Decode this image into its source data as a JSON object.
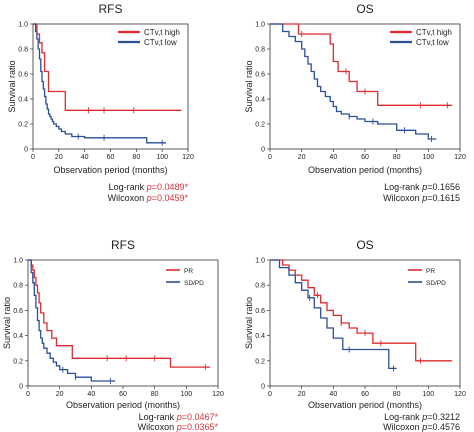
{
  "chart_data": [
    {
      "type": "line",
      "title": "RFS",
      "xlabel": "Observation period (months)",
      "ylabel": "Survival ratio",
      "xlim": [
        0,
        120
      ],
      "ylim": [
        0,
        1.0
      ],
      "xticks": [
        "0",
        "20",
        "40",
        "60",
        "80",
        "100",
        "120"
      ],
      "yticks": [
        "0",
        "0.2",
        "0.4",
        "0.6",
        "0.8",
        "1.0"
      ],
      "legend_style": "large",
      "legend_position": "top-right",
      "series": [
        {
          "name": "CTv,t high",
          "color": "#e02a2f",
          "x": [
            0,
            3,
            5,
            7,
            9,
            12,
            25,
            115
          ],
          "y": [
            1.0,
            0.92,
            0.85,
            0.77,
            0.62,
            0.46,
            0.31,
            0.31
          ],
          "censor_x": [
            43,
            55,
            78
          ]
        },
        {
          "name": "CTv,t low",
          "color": "#2a4f9a",
          "x": [
            0,
            2,
            3,
            4,
            5,
            6,
            7,
            8,
            9,
            10,
            11,
            12,
            13,
            14,
            15,
            16,
            18,
            20,
            22,
            25,
            30,
            40,
            88,
            103
          ],
          "y": [
            1.0,
            0.94,
            0.88,
            0.8,
            0.72,
            0.62,
            0.54,
            0.48,
            0.42,
            0.36,
            0.32,
            0.28,
            0.26,
            0.24,
            0.22,
            0.2,
            0.18,
            0.16,
            0.14,
            0.12,
            0.1,
            0.09,
            0.05,
            0.05
          ],
          "censor_x": [
            35,
            55,
            100
          ]
        }
      ],
      "stats": [
        {
          "label": "Log-rank",
          "p_label": "p",
          "value": "=0.0489*",
          "significant": true
        },
        {
          "label": "Wilcoxon",
          "p_label": "p",
          "value": "=0.0459*",
          "significant": true
        }
      ]
    },
    {
      "type": "line",
      "title": "OS",
      "xlabel": "Observation period (months)",
      "ylabel": "Survival ratio",
      "xlim": [
        0,
        120
      ],
      "ylim": [
        0,
        1.0
      ],
      "xticks": [
        "0",
        "20",
        "40",
        "60",
        "80",
        "100",
        "120"
      ],
      "yticks": [
        "0",
        "0.2",
        "0.4",
        "0.6",
        "0.8",
        "1.0"
      ],
      "legend_style": "large",
      "legend_position": "top-right",
      "series": [
        {
          "name": "CTv,t high",
          "color": "#e02a2f",
          "x": [
            0,
            15,
            18,
            38,
            40,
            43,
            50,
            55,
            68,
            115
          ],
          "y": [
            1.0,
            1.0,
            0.92,
            0.84,
            0.7,
            0.62,
            0.54,
            0.46,
            0.35,
            0.35
          ],
          "censor_x": [
            20,
            48,
            60,
            95,
            112
          ]
        },
        {
          "name": "CTv,t low",
          "color": "#2a4f9a",
          "x": [
            0,
            8,
            12,
            16,
            20,
            22,
            24,
            26,
            28,
            30,
            32,
            35,
            38,
            40,
            42,
            45,
            50,
            55,
            60,
            68,
            80,
            92,
            100,
            105
          ],
          "y": [
            1.0,
            0.94,
            0.9,
            0.86,
            0.8,
            0.74,
            0.68,
            0.62,
            0.56,
            0.5,
            0.46,
            0.42,
            0.38,
            0.34,
            0.3,
            0.28,
            0.26,
            0.24,
            0.22,
            0.2,
            0.15,
            0.12,
            0.08,
            0.08
          ],
          "censor_x": [
            50,
            65,
            85,
            102
          ]
        }
      ],
      "stats": [
        {
          "label": "Log-rank",
          "p_label": "p",
          "value": "=0.1656",
          "significant": false
        },
        {
          "label": "Wilcoxon",
          "p_label": "p",
          "value": "=0.1615",
          "significant": false
        }
      ]
    },
    {
      "type": "line",
      "title": "RFS",
      "xlabel": "Observation period (months)",
      "ylabel": "Survival ratio",
      "xlim": [
        0,
        120
      ],
      "ylim": [
        0,
        1.0
      ],
      "xticks": [
        "0",
        "20",
        "40",
        "60",
        "80",
        "100",
        "120"
      ],
      "yticks": [
        "0",
        "0.2",
        "0.4",
        "0.6",
        "0.8",
        "1.0"
      ],
      "legend_style": "small",
      "legend_position": "top-right",
      "series": [
        {
          "name": "PR",
          "color": "#e02a2f",
          "x": [
            0,
            2,
            3,
            4,
            5,
            6,
            7,
            8,
            10,
            12,
            15,
            18,
            28,
            90,
            115
          ],
          "y": [
            1.0,
            0.96,
            0.92,
            0.86,
            0.8,
            0.74,
            0.66,
            0.58,
            0.5,
            0.44,
            0.38,
            0.32,
            0.22,
            0.15,
            0.15
          ],
          "censor_x": [
            50,
            62,
            80,
            112
          ]
        },
        {
          "name": "SD/PD",
          "color": "#2a4f9a",
          "x": [
            0,
            2,
            3,
            4,
            5,
            6,
            7,
            8,
            9,
            10,
            12,
            14,
            16,
            18,
            20,
            25,
            30,
            40,
            55
          ],
          "y": [
            1.0,
            0.9,
            0.82,
            0.72,
            0.62,
            0.52,
            0.44,
            0.38,
            0.34,
            0.3,
            0.26,
            0.22,
            0.19,
            0.16,
            0.13,
            0.1,
            0.07,
            0.04,
            0.04
          ],
          "censor_x": [
            22,
            30,
            52
          ]
        }
      ],
      "stats": [
        {
          "label": "Log-rank",
          "p_label": "p",
          "value": "=0.0467*",
          "significant": true
        },
        {
          "label": "Wilcoxon",
          "p_label": "p",
          "value": "=0.0365*",
          "significant": true
        }
      ]
    },
    {
      "type": "line",
      "title": "OS",
      "xlabel": "Observation period (months)",
      "ylabel": "Survival ratio",
      "xlim": [
        0,
        120
      ],
      "ylim": [
        0,
        1.0
      ],
      "xticks": [
        "0",
        "20",
        "40",
        "60",
        "80",
        "100",
        "120"
      ],
      "yticks": [
        "0",
        "0.2",
        "0.4",
        "0.6",
        "0.8",
        "1.0"
      ],
      "legend_style": "small",
      "legend_position": "top-right",
      "series": [
        {
          "name": "PR",
          "color": "#e02a2f",
          "x": [
            0,
            8,
            12,
            16,
            20,
            24,
            28,
            32,
            36,
            40,
            45,
            50,
            55,
            65,
            92,
            115
          ],
          "y": [
            1.0,
            0.96,
            0.92,
            0.88,
            0.84,
            0.78,
            0.72,
            0.66,
            0.6,
            0.56,
            0.5,
            0.46,
            0.42,
            0.34,
            0.2,
            0.2
          ],
          "censor_x": [
            30,
            45,
            60,
            70,
            95
          ]
        },
        {
          "name": "SD/PD",
          "color": "#2a4f9a",
          "x": [
            0,
            6,
            12,
            16,
            20,
            24,
            28,
            32,
            36,
            40,
            46,
            55,
            75,
            80
          ],
          "y": [
            1.0,
            0.94,
            0.88,
            0.82,
            0.76,
            0.7,
            0.62,
            0.54,
            0.46,
            0.38,
            0.29,
            0.29,
            0.14,
            0.14
          ],
          "censor_x": [
            25,
            50,
            78
          ]
        }
      ],
      "stats": [
        {
          "label": "Log-rank",
          "p_label": "p",
          "value": "=0.3212",
          "significant": false
        },
        {
          "label": "Wilcoxon",
          "p_label": "p",
          "value": "=0.4576",
          "significant": false
        }
      ]
    }
  ]
}
